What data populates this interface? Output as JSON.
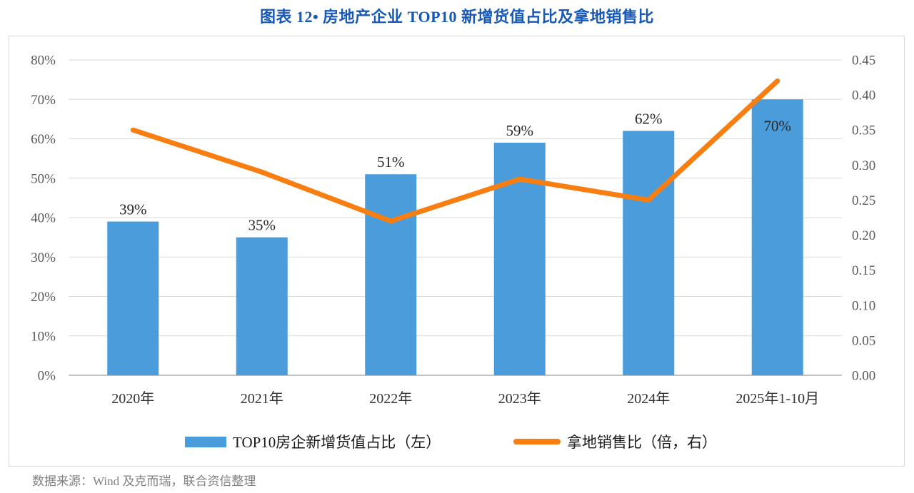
{
  "title": "图表 12• 房地产企业 TOP10 新增货值占比及拿地销售比",
  "source": "数据来源：Wind 及克而瑞，联合资信整理",
  "legend": {
    "bar_label": "TOP10房企新增货值占比（左）",
    "line_label": "拿地销售比（倍，右）"
  },
  "colors": {
    "title": "#1859B8",
    "bar": "#4A9CDB",
    "line": "#F87E12",
    "grid": "#D9D9D9",
    "baseline": "#C3C3C3",
    "axis_label": "#595959",
    "text": "#262626",
    "source": "#808080"
  },
  "chart_data": {
    "type": "bar+line",
    "title": "图表 12• 房地产企业 TOP10 新增货值占比及拿地销售比",
    "categories": [
      "2020年",
      "2021年",
      "2022年",
      "2023年",
      "2024年",
      "2025年1-10月"
    ],
    "series": [
      {
        "name": "TOP10房企新增货值占比（左）",
        "type": "bar",
        "axis": "left",
        "color": "#4A9CDB",
        "values": [
          39,
          35,
          51,
          59,
          62,
          70
        ],
        "data_labels": [
          "39%",
          "35%",
          "51%",
          "59%",
          "62%",
          "70%"
        ],
        "label_inside": [
          false,
          false,
          false,
          false,
          false,
          true
        ]
      },
      {
        "name": "拿地销售比（倍，右）",
        "type": "line",
        "axis": "right",
        "color": "#F87E12",
        "values": [
          0.35,
          0.29,
          0.22,
          0.28,
          0.25,
          0.42
        ]
      }
    ],
    "left_axis": {
      "min": 0,
      "max": 80,
      "step": 10,
      "tick_labels": [
        "0%",
        "10%",
        "20%",
        "30%",
        "40%",
        "50%",
        "60%",
        "70%",
        "80%"
      ]
    },
    "right_axis": {
      "min": 0,
      "max": 0.45,
      "step": 0.05,
      "tick_labels": [
        "0.00",
        "0.05",
        "0.10",
        "0.15",
        "0.20",
        "0.25",
        "0.30",
        "0.35",
        "0.40",
        "0.45"
      ]
    },
    "grid": true,
    "legend_position": "bottom"
  }
}
